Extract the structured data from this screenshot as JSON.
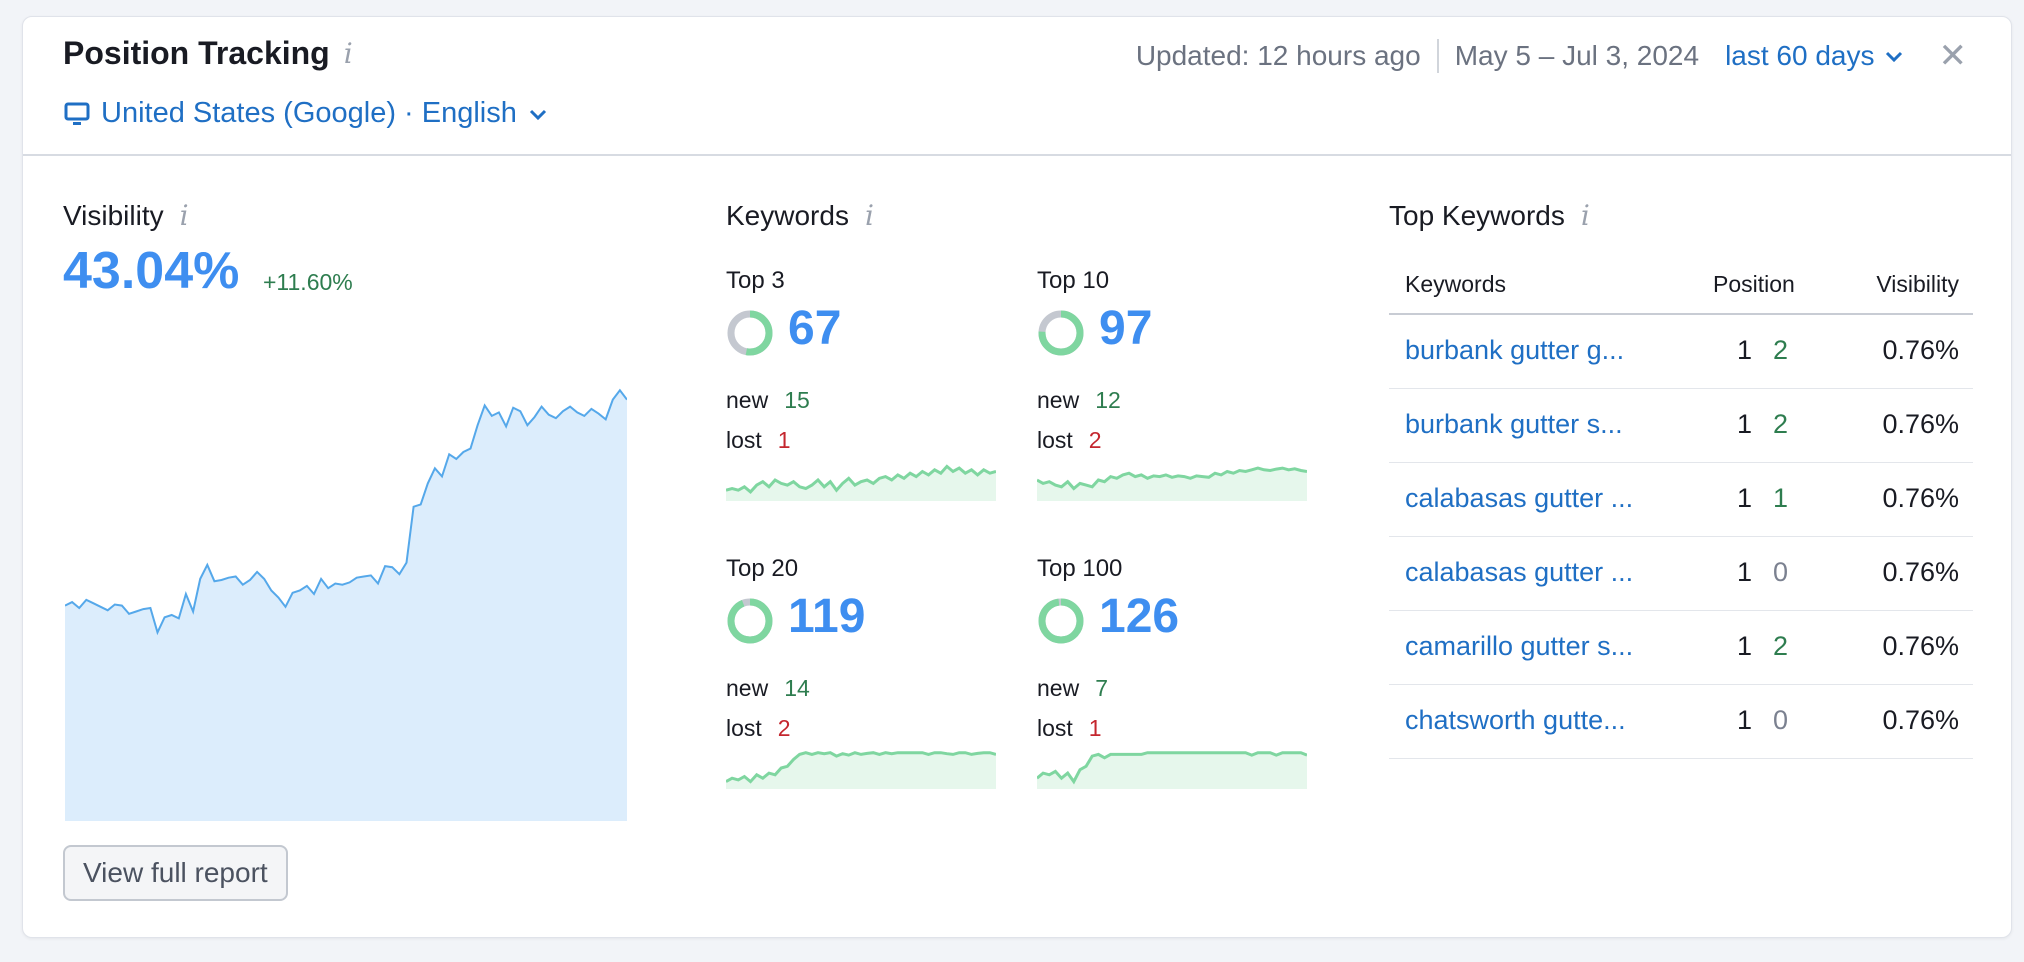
{
  "header": {
    "title": "Position Tracking",
    "location": "United States (Google) · English",
    "updated": "Updated: 12 hours ago",
    "date_range": "May 5 – Jul 3, 2024",
    "period": "last 60 days"
  },
  "visibility": {
    "title": "Visibility",
    "value": "43.04%",
    "delta": "+11.60%",
    "series": [
      33.5,
      33.8,
      33.3,
      34.0,
      33.7,
      33.4,
      33.1,
      33.6,
      33.5,
      32.8,
      33.0,
      33.2,
      33.3,
      31.2,
      32.5,
      32.7,
      32.4,
      34.5,
      33.0,
      35.8,
      37.0,
      35.6,
      35.7,
      35.9,
      36.0,
      35.3,
      35.7,
      36.4,
      35.8,
      34.8,
      34.2,
      33.4,
      34.6,
      34.8,
      35.2,
      34.5,
      35.8,
      35.0,
      35.4,
      35.3,
      35.5,
      35.9,
      36.0,
      36.1,
      35.4,
      36.9,
      36.8,
      36.2,
      37.2,
      42.0,
      42.2,
      44.0,
      45.3,
      44.6,
      46.5,
      46.1,
      46.7,
      47.0,
      49.0,
      50.7,
      49.8,
      50.1,
      48.9,
      50.5,
      50.2,
      49.0,
      49.7,
      50.6,
      49.9,
      49.6,
      50.2,
      50.6,
      50.1,
      49.8,
      50.4,
      50.0,
      49.5,
      51.2,
      52.0,
      51.2
    ]
  },
  "keywords": {
    "title": "Keywords",
    "blocks": [
      {
        "label": "Top 3",
        "count": "67",
        "new_label": "new",
        "new": "15",
        "lost_label": "lost",
        "lost": "1",
        "fill_fraction": 0.53,
        "spark": [
          0.2,
          0.25,
          0.2,
          0.3,
          0.15,
          0.35,
          0.45,
          0.3,
          0.5,
          0.4,
          0.35,
          0.45,
          0.3,
          0.25,
          0.35,
          0.5,
          0.3,
          0.45,
          0.2,
          0.4,
          0.55,
          0.35,
          0.45,
          0.5,
          0.4,
          0.55,
          0.6,
          0.5,
          0.65,
          0.55,
          0.7,
          0.6,
          0.75,
          0.65,
          0.8,
          0.7,
          0.9,
          0.75,
          0.85,
          0.7,
          0.8,
          0.65,
          0.8,
          0.7,
          0.75
        ]
      },
      {
        "label": "Top 10",
        "count": "97",
        "new_label": "new",
        "new": "12",
        "lost_label": "lost",
        "lost": "2",
        "fill_fraction": 0.76,
        "spark": [
          0.5,
          0.4,
          0.45,
          0.35,
          0.3,
          0.45,
          0.25,
          0.4,
          0.35,
          0.3,
          0.5,
          0.45,
          0.6,
          0.55,
          0.65,
          0.7,
          0.6,
          0.65,
          0.55,
          0.62,
          0.6,
          0.65,
          0.58,
          0.62,
          0.6,
          0.55,
          0.62,
          0.6,
          0.58,
          0.7,
          0.65,
          0.75,
          0.7,
          0.78,
          0.75,
          0.8,
          0.85,
          0.8,
          0.78,
          0.82,
          0.85,
          0.8,
          0.83,
          0.78,
          0.75
        ]
      },
      {
        "label": "Top 20",
        "count": "119",
        "new_label": "new",
        "new": "14",
        "lost_label": "lost",
        "lost": "2",
        "fill_fraction": 0.94,
        "spark": [
          0.1,
          0.2,
          0.15,
          0.25,
          0.1,
          0.3,
          0.2,
          0.35,
          0.3,
          0.5,
          0.55,
          0.75,
          0.9,
          0.95,
          0.9,
          0.95,
          0.92,
          0.95,
          0.85,
          0.92,
          0.88,
          0.95,
          0.9,
          0.93,
          0.95,
          0.9,
          0.95,
          0.92,
          0.95,
          0.95,
          0.95,
          0.95,
          0.95,
          0.9,
          0.95,
          0.95,
          0.92,
          0.9,
          0.95,
          0.95,
          0.9,
          0.93,
          0.95,
          0.95,
          0.9
        ]
      },
      {
        "label": "Top 100",
        "count": "126",
        "new_label": "new",
        "new": "7",
        "lost_label": "lost",
        "lost": "1",
        "fill_fraction": 0.98,
        "spark": [
          0.2,
          0.35,
          0.3,
          0.4,
          0.2,
          0.35,
          0.1,
          0.45,
          0.55,
          0.85,
          0.9,
          0.8,
          0.9,
          0.9,
          0.9,
          0.9,
          0.9,
          0.9,
          0.95,
          0.95,
          0.95,
          0.95,
          0.95,
          0.95,
          0.95,
          0.95,
          0.95,
          0.95,
          0.95,
          0.95,
          0.95,
          0.95,
          0.95,
          0.95,
          0.95,
          0.88,
          0.95,
          0.95,
          0.95,
          0.88,
          0.95,
          0.95,
          0.95,
          0.95,
          0.88
        ]
      }
    ]
  },
  "top_keywords": {
    "title": "Top Keywords",
    "columns": [
      "Keywords",
      "Position",
      "Visibility"
    ],
    "rows": [
      {
        "keyword": "burbank gutter g...",
        "position": "1",
        "change": "2",
        "visibility": "0.76%"
      },
      {
        "keyword": "burbank gutter s...",
        "position": "1",
        "change": "2",
        "visibility": "0.76%"
      },
      {
        "keyword": "calabasas gutter ...",
        "position": "1",
        "change": "1",
        "visibility": "0.76%"
      },
      {
        "keyword": "calabasas gutter ...",
        "position": "1",
        "change": "0",
        "visibility": "0.76%"
      },
      {
        "keyword": "camarillo gutter s...",
        "position": "1",
        "change": "2",
        "visibility": "0.76%"
      },
      {
        "keyword": "chatsworth gutte...",
        "position": "1",
        "change": "0",
        "visibility": "0.76%"
      }
    ]
  },
  "footer": {
    "view_report": "View full report"
  },
  "colors": {
    "accent": "#3e8ef0",
    "link": "#1f6fc4",
    "positive": "#2e7d4f",
    "negative": "#c4262e",
    "spark": "#7fd6a0",
    "area": "#dcedfc"
  }
}
